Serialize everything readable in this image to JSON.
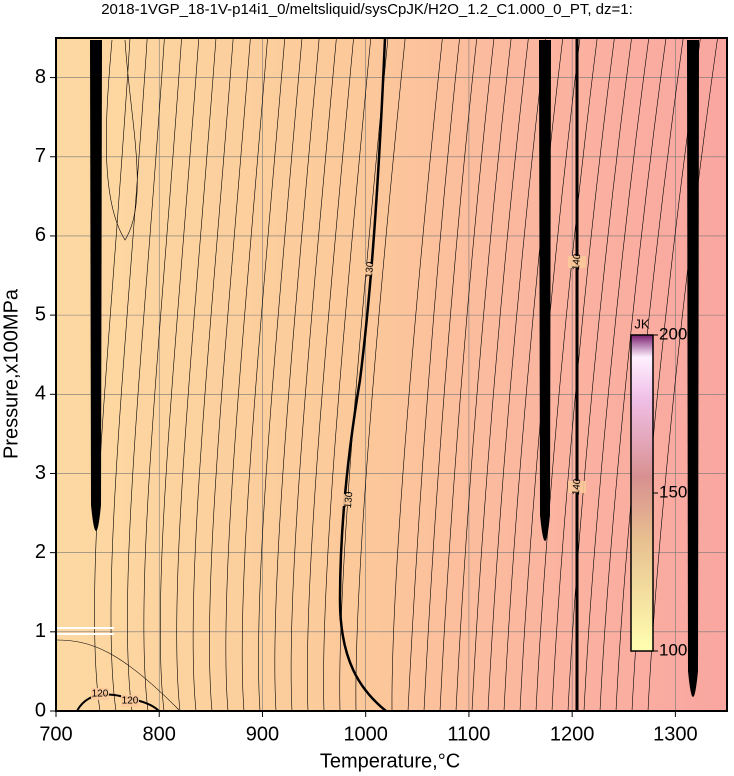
{
  "chart_data": {
    "type": "contour",
    "title": "2018-1VGP_18-1V-p14i1_0/meltsliquid/sysCpJK/H2O_1.2_C1.000_0_PT, dz=1:",
    "x_label": "Temperature,°C",
    "y_label": "Pressure,x100MPa",
    "xlim": [
      700,
      1350
    ],
    "ylim": [
      0,
      8.5
    ],
    "xticks": [
      700,
      800,
      900,
      1000,
      1100,
      1200,
      1300
    ],
    "yticks": [
      0,
      1,
      2,
      3,
      4,
      5,
      6,
      7,
      8
    ],
    "grid": true,
    "contour_levels": [
      120,
      130,
      140
    ],
    "colorbar": {
      "label": "JK",
      "clim": [
        100,
        200
      ],
      "ticks": [
        100,
        150,
        200
      ]
    }
  }
}
